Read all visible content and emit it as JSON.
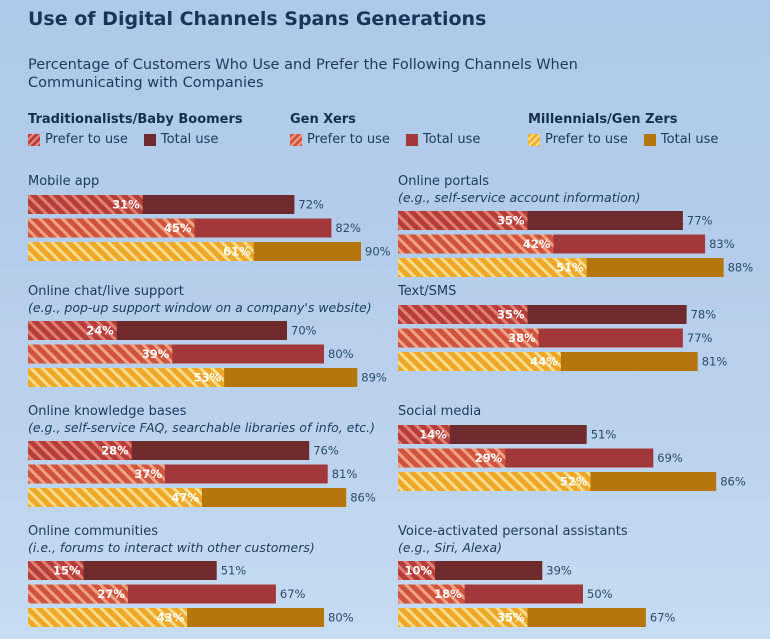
{
  "title": "Use of Digital Channels Spans Generations",
  "subtitle": "Percentage of Customers Who Use and Prefer the Following Channels When Communicating with Companies",
  "colors": {
    "trad_total": "#6e2a2c",
    "trad_prefer": "#b73c3a",
    "genx_total": "#a3383a",
    "genx_prefer": "#d0533e",
    "mill_total": "#b5760e",
    "mill_prefer": "#f0ae2a"
  },
  "legend": {
    "prefer_label": "Prefer to use",
    "total_label": "Total use",
    "groups": [
      {
        "title": "Traditionalists/Baby Boomers",
        "prefer_color": "#b73c3a",
        "total_color": "#6e2a2c"
      },
      {
        "title": "Gen Xers",
        "prefer_color": "#d0533e",
        "total_color": "#a3383a"
      },
      {
        "title": "Millennials/Gen Zers",
        "prefer_color": "#f0ae2a",
        "total_color": "#b5760e"
      }
    ]
  },
  "chart_data": {
    "type": "bar",
    "title": "Use of Digital Channels Spans Generations",
    "subtitle": "Percentage of Customers Who Use and Prefer the Following Channels When Communicating with Companies",
    "value_suffix": "%",
    "series": [
      {
        "name": "Traditionalists/Baby Boomers"
      },
      {
        "name": "Gen Xers"
      },
      {
        "name": "Millennials/Gen Zers"
      }
    ],
    "categories": [
      {
        "label": "Mobile app",
        "sublabel": "",
        "prefer": [
          31,
          45,
          61
        ],
        "total": [
          72,
          82,
          90
        ]
      },
      {
        "label": "Online portals",
        "sublabel": "(e.g., self-service account information)",
        "prefer": [
          35,
          42,
          51
        ],
        "total": [
          77,
          83,
          88
        ]
      },
      {
        "label": "Online chat/live support",
        "sublabel": "(e.g., pop-up support window on a company's website)",
        "prefer": [
          24,
          39,
          53
        ],
        "total": [
          70,
          80,
          89
        ]
      },
      {
        "label": "Text/SMS",
        "sublabel": "",
        "prefer": [
          35,
          38,
          44
        ],
        "total": [
          78,
          77,
          81
        ]
      },
      {
        "label": "Online knowledge bases",
        "sublabel": "(e.g., self-service FAQ, searchable libraries of info, etc.)",
        "prefer": [
          28,
          37,
          47
        ],
        "total": [
          76,
          81,
          86
        ]
      },
      {
        "label": "Social media",
        "sublabel": "",
        "prefer": [
          14,
          29,
          52
        ],
        "total": [
          51,
          69,
          86
        ]
      },
      {
        "label": "Online communities",
        "sublabel": "(i.e., forums to interact with other customers)",
        "prefer": [
          15,
          27,
          43
        ],
        "total": [
          51,
          67,
          80
        ]
      },
      {
        "label": "Voice-activated personal assistants",
        "sublabel": "(e.g., Siri, Alexa)",
        "prefer": [
          10,
          18,
          35
        ],
        "total": [
          39,
          50,
          67
        ]
      }
    ]
  }
}
